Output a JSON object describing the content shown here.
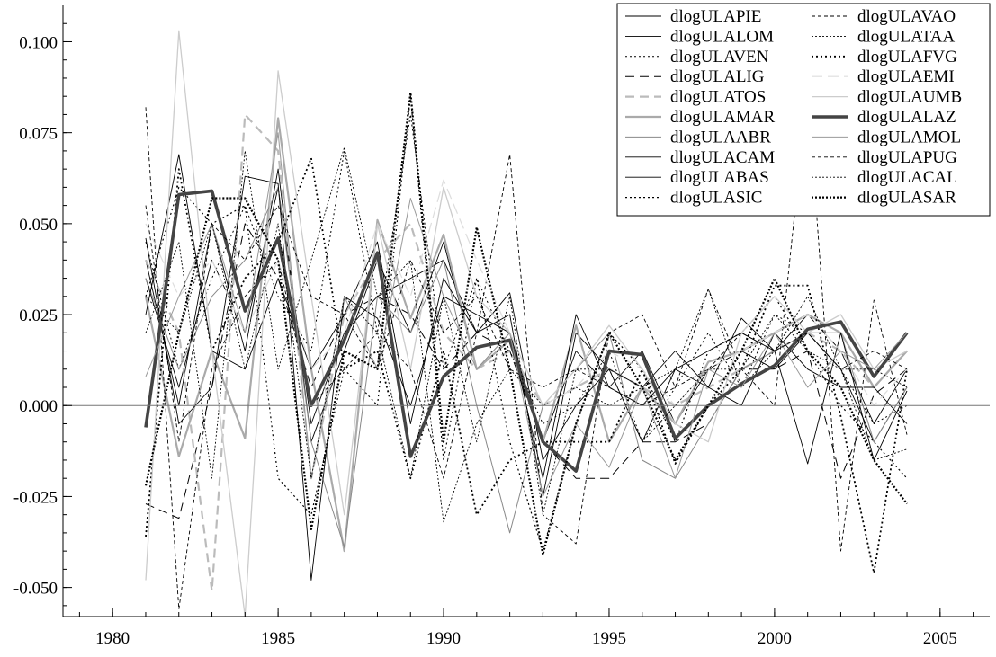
{
  "chart_data": {
    "type": "line",
    "title": "",
    "xlabel": "",
    "ylabel": "",
    "xlim": [
      1978.5,
      2006.5
    ],
    "ylim": [
      -0.058,
      0.11
    ],
    "xticks": [
      1980,
      1985,
      1990,
      1995,
      2000,
      2005
    ],
    "xtick_labels": [
      "1980",
      "1985",
      "1990",
      "1995",
      "2000",
      "2005"
    ],
    "yticks": [
      -0.05,
      -0.025,
      0.0,
      0.025,
      0.05,
      0.075,
      0.1
    ],
    "ytick_labels": [
      "-0.050",
      "-0.025",
      "0.000",
      "0.025",
      "0.050",
      "0.075",
      "0.100"
    ],
    "grid": false,
    "zero_line": true,
    "legend_position": "top-right",
    "x": [
      1981,
      1982,
      1983,
      1984,
      1985,
      1986,
      1987,
      1988,
      1989,
      1990,
      1991,
      1992,
      1993,
      1994,
      1995,
      1996,
      1997,
      1998,
      1999,
      2000,
      2001,
      2002,
      2003,
      2004
    ],
    "series": [
      {
        "name": "dlogULAPIE",
        "color": "#000000",
        "width": 0.9,
        "dash": "",
        "values": [
          0.035,
          0.005,
          0.04,
          0.02,
          0.06,
          -0.005,
          0.02,
          0.03,
          0.035,
          0.04,
          0.02,
          0.025,
          -0.025,
          0.02,
          0.01,
          -0.01,
          0.01,
          0.015,
          0.02,
          0.015,
          0.025,
          0.015,
          -0.005,
          0.01
        ]
      },
      {
        "name": "dlogULALOM",
        "color": "#000000",
        "width": 0.9,
        "dash": "",
        "values": [
          0.04,
          0.0,
          0.05,
          0.015,
          0.065,
          -0.01,
          0.015,
          0.04,
          0.02,
          0.045,
          0.01,
          0.02,
          -0.01,
          0.015,
          0.005,
          0.015,
          -0.005,
          0.01,
          0.015,
          0.01,
          0.02,
          0.01,
          -0.01,
          0.005
        ]
      },
      {
        "name": "dlogULAVEN",
        "color": "#000000",
        "width": 1.0,
        "dash": "2,3",
        "values": [
          0.045,
          0.01,
          0.035,
          0.055,
          0.03,
          0.015,
          0.07,
          0.02,
          0.08,
          0.01,
          0.035,
          0.015,
          -0.005,
          0.0,
          0.015,
          -0.01,
          0.005,
          0.02,
          0.005,
          0.025,
          0.02,
          0.01,
          -0.005,
          0.0
        ]
      },
      {
        "name": "dlogULALIG",
        "color": "#000000",
        "width": 1.0,
        "dash": "10,6",
        "values": [
          -0.027,
          -0.031,
          0.005,
          0.05,
          0.035,
          0.005,
          0.025,
          0.03,
          0.025,
          0.01,
          0.02,
          0.015,
          -0.01,
          -0.02,
          -0.02,
          -0.01,
          -0.01,
          -0.005,
          0.01,
          0.01,
          0.015,
          -0.02,
          0.003,
          0.01
        ]
      },
      {
        "name": "dlogULATOS",
        "color": "#bbbbbb",
        "width": 2.2,
        "dash": "10,6",
        "values": [
          0.04,
          0.02,
          -0.051,
          0.08,
          0.07,
          -0.02,
          0.025,
          0.04,
          0.05,
          0.02,
          0.01,
          0.015,
          0.0,
          0.005,
          0.01,
          0.005,
          0.0,
          0.005,
          0.01,
          0.015,
          0.02,
          0.015,
          0.005,
          0.015
        ]
      },
      {
        "name": "dlogULAMAR",
        "color": "#aaaaaa",
        "width": 2.2,
        "dash": "",
        "values": [
          0.03,
          -0.014,
          0.015,
          -0.009,
          0.079,
          0.01,
          -0.04,
          0.051,
          0.024,
          0.047,
          0.01,
          0.018,
          -0.01,
          0.022,
          -0.01,
          0.005,
          -0.005,
          0.012,
          0.015,
          0.02,
          0.025,
          0.02,
          0.005,
          0.015
        ]
      },
      {
        "name": "dlogULAABR",
        "color": "#888888",
        "width": 1.0,
        "dash": "",
        "values": [
          0.035,
          0.01,
          0.03,
          0.04,
          0.06,
          -0.01,
          -0.039,
          0.03,
          0.02,
          0.04,
          0.0,
          -0.035,
          0.0,
          0.01,
          0.02,
          -0.015,
          -0.02,
          -0.005,
          0.01,
          0.015,
          0.02,
          0.02,
          -0.01,
          0.005
        ]
      },
      {
        "name": "dlogULACAM",
        "color": "#000000",
        "width": 0.9,
        "dash": "",
        "values": [
          0.046,
          -0.005,
          0.005,
          0.063,
          0.061,
          -0.048,
          0.03,
          0.024,
          0.0,
          0.03,
          0.025,
          0.02,
          -0.02,
          0.025,
          0.005,
          0.0,
          0.01,
          0.005,
          0.024,
          0.015,
          -0.016,
          0.02,
          -0.015,
          0.004
        ]
      },
      {
        "name": "dlogULABAS",
        "color": "#000000",
        "width": 0.9,
        "dash": "",
        "values": [
          0.025,
          0.069,
          0.015,
          0.01,
          0.035,
          0.01,
          0.025,
          0.045,
          -0.005,
          0.035,
          0.02,
          0.031,
          -0.015,
          0.0,
          0.01,
          0.005,
          0.015,
          0.005,
          0.0,
          0.02,
          0.01,
          0.005,
          0.005,
          -0.005
        ]
      },
      {
        "name": "dlogULASIC",
        "color": "#000000",
        "width": 1.2,
        "dash": "2,3",
        "values": [
          0.03,
          0.06,
          0.05,
          0.055,
          -0.02,
          -0.03,
          0.01,
          0.0,
          0.085,
          -0.015,
          0.035,
          -0.01,
          -0.04,
          -0.005,
          0.02,
          0.01,
          -0.01,
          0.015,
          0.02,
          0.03,
          0.015,
          0.0,
          -0.01,
          -0.02
        ]
      },
      {
        "name": "dlogULAVAO",
        "color": "#000000",
        "width": 0.9,
        "dash": "4,3",
        "values": [
          0.082,
          -0.056,
          0.01,
          0.03,
          0.04,
          0.0,
          0.01,
          0.02,
          0.01,
          -0.02,
          0.02,
          0.069,
          -0.03,
          -0.038,
          0.02,
          0.025,
          0.005,
          0.032,
          0.01,
          0.0,
          0.087,
          -0.04,
          0.029,
          -0.008
        ]
      },
      {
        "name": "dlogULATAA",
        "color": "#000000",
        "width": 0.9,
        "dash": "2,2",
        "values": [
          0.02,
          0.045,
          -0.02,
          0.07,
          0.01,
          0.04,
          0.071,
          0.03,
          0.04,
          -0.032,
          -0.005,
          0.01,
          0.0,
          0.005,
          0.0,
          0.005,
          0.01,
          0.032,
          0.005,
          0.015,
          0.03,
          0.01,
          -0.015,
          -0.012
        ]
      },
      {
        "name": "dlogULAFVG",
        "color": "#000000",
        "width": 1.8,
        "dash": "2,3",
        "values": [
          -0.036,
          0.065,
          0.015,
          0.035,
          0.045,
          0.068,
          0.01,
          0.015,
          -0.02,
          0.015,
          -0.03,
          -0.015,
          -0.01,
          -0.01,
          -0.01,
          0.01,
          -0.016,
          0.0,
          0.01,
          0.033,
          0.033,
          -0.003,
          -0.046,
          0.01
        ]
      },
      {
        "name": "dlogULAEMI",
        "color": "#dddddd",
        "width": 1.2,
        "dash": "12,6",
        "values": [
          0.05,
          0.03,
          0.04,
          0.02,
          0.04,
          0.01,
          0.02,
          0.05,
          0.03,
          0.062,
          0.04,
          0.02,
          0.0,
          0.005,
          0.015,
          0.01,
          0.0,
          0.01,
          0.015,
          0.02,
          0.025,
          0.015,
          0.0,
          0.01
        ]
      },
      {
        "name": "dlogULAUMB",
        "color": "#cccccc",
        "width": 1.3,
        "dash": "",
        "values": [
          -0.048,
          0.103,
          0.015,
          -0.058,
          0.092,
          0.03,
          -0.03,
          0.05,
          0.01,
          0.06,
          0.03,
          0.02,
          0.0,
          0.01,
          0.022,
          0.01,
          -0.005,
          -0.01,
          0.02,
          0.03,
          0.02,
          0.025,
          0.01,
          0.015
        ]
      },
      {
        "name": "dlogULALAZ",
        "color": "#444444",
        "width": 3.6,
        "dash": "",
        "values": [
          -0.006,
          0.058,
          0.059,
          0.026,
          0.046,
          0.0,
          0.018,
          0.042,
          -0.014,
          0.008,
          0.016,
          0.018,
          -0.01,
          -0.018,
          0.015,
          0.014,
          -0.009,
          0.0,
          0.006,
          0.011,
          0.021,
          0.023,
          0.008,
          0.02
        ]
      },
      {
        "name": "dlogULAMOL",
        "color": "#999999",
        "width": 1.0,
        "dash": "",
        "values": [
          0.008,
          0.03,
          0.05,
          0.02,
          0.075,
          -0.02,
          0.03,
          0.01,
          0.057,
          0.03,
          0.01,
          0.02,
          -0.025,
          -0.005,
          -0.017,
          0.005,
          -0.02,
          0.01,
          0.005,
          0.02,
          0.005,
          0.015,
          0.01,
          0.02
        ]
      },
      {
        "name": "dlogULAPUG",
        "color": "#000000",
        "width": 0.9,
        "dash": "4,3",
        "values": [
          0.055,
          -0.01,
          0.05,
          0.04,
          0.055,
          0.03,
          0.025,
          0.01,
          0.04,
          0.02,
          0.03,
          0.01,
          0.005,
          0.01,
          0.005,
          0.0,
          0.005,
          0.01,
          0.02,
          0.015,
          0.02,
          0.01,
          0.015,
          0.01
        ]
      },
      {
        "name": "dlogULACAL",
        "color": "#000000",
        "width": 0.9,
        "dash": "2,2",
        "values": [
          0.03,
          0.02,
          0.05,
          0.01,
          0.05,
          -0.02,
          0.03,
          0.02,
          -0.02,
          0.03,
          -0.01,
          0.03,
          -0.03,
          0.01,
          0.01,
          -0.01,
          0.0,
          0.01,
          0.01,
          0.025,
          0.015,
          0.01,
          0.01,
          0.005
        ]
      },
      {
        "name": "dlogULASAR",
        "color": "#000000",
        "width": 2.2,
        "dash": "2,2",
        "values": [
          -0.022,
          0.02,
          0.057,
          0.057,
          0.04,
          -0.034,
          0.015,
          0.01,
          0.086,
          -0.01,
          0.049,
          0.01,
          -0.041,
          -0.005,
          0.02,
          0.005,
          -0.015,
          0.0,
          0.015,
          0.035,
          0.015,
          0.005,
          -0.015,
          -0.027
        ]
      }
    ]
  }
}
